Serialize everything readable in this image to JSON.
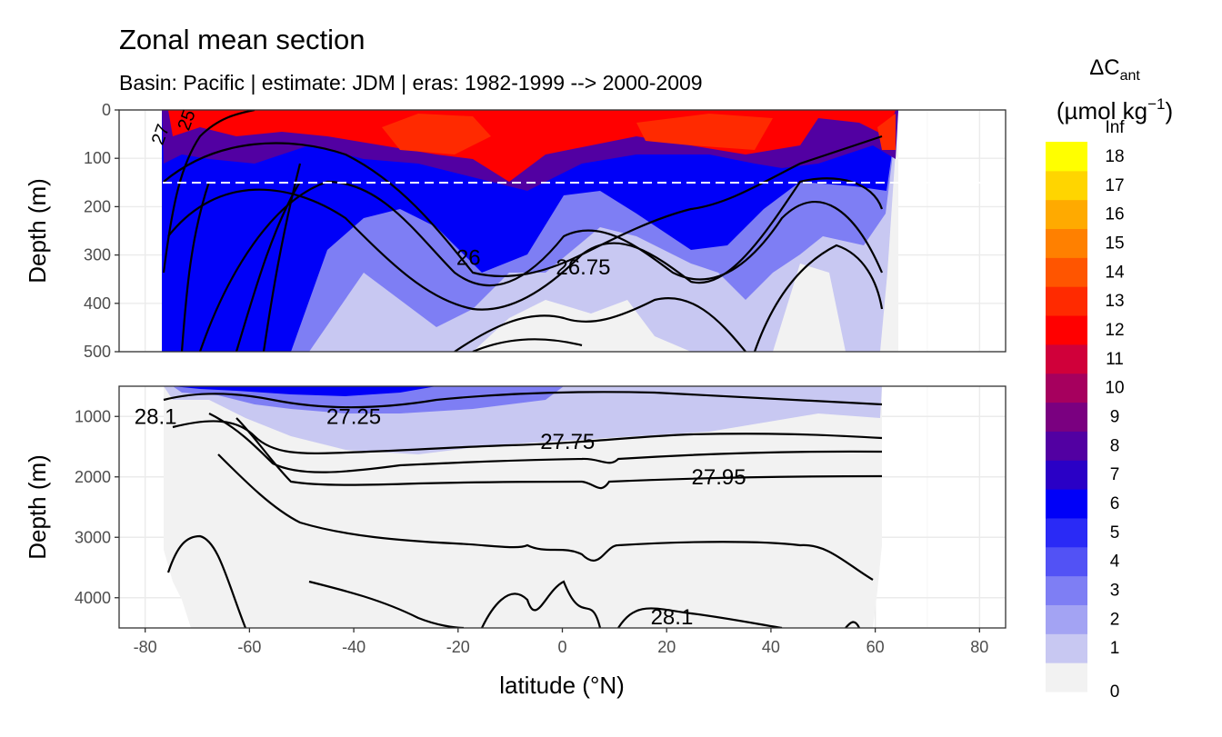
{
  "chart_data": {
    "type": "heatmap",
    "title": "Zonal mean section",
    "subtitle": "Basin: Pacific | estimate: JDM  | eras: 1982-1999 --> 2000-2009",
    "xlabel": "latitude (°N)",
    "ylabel_top": "Depth (m)",
    "ylabel_bottom": "Depth (m)",
    "x_ticks": [
      "-80",
      "-60",
      "-40",
      "-20",
      "0",
      "20",
      "40",
      "60",
      "80"
    ],
    "x_tick_values": [
      -80,
      -60,
      -40,
      -20,
      0,
      20,
      40,
      60,
      80
    ],
    "xlim": [
      -85,
      85
    ],
    "panel_top": {
      "ylim": [
        500,
        0
      ],
      "y_ticks": [
        "0",
        "100",
        "200",
        "300",
        "400",
        "500"
      ],
      "y_tick_values": [
        0,
        100,
        200,
        300,
        400,
        500
      ],
      "dashed_line_depth": 150
    },
    "panel_bottom": {
      "ylim": [
        4500,
        500
      ],
      "y_ticks": [
        "1000",
        "2000",
        "3000",
        "4000"
      ],
      "y_tick_values": [
        1000,
        2000,
        3000,
        4000
      ]
    },
    "legend": {
      "title_main": "ΔC",
      "title_sub": "ant",
      "title_units": "(µmol kg",
      "title_units_sup": "−1",
      "title_units_end": ")",
      "breaks": [
        "0",
        "1",
        "2",
        "3",
        "4",
        "5",
        "6",
        "7",
        "8",
        "9",
        "10",
        "11",
        "12",
        "13",
        "14",
        "15",
        "16",
        "17",
        "18",
        "Inf"
      ],
      "colors": [
        "#f2f2f2",
        "#c8c8f2",
        "#a3a3f3",
        "#7e7ef4",
        "#5252f5",
        "#2a2af6",
        "#0000f8",
        "#2a00c6",
        "#5200a2",
        "#7a0080",
        "#a6005e",
        "#d0003a",
        "#ff0000",
        "#ff2a00",
        "#ff5500",
        "#ff8000",
        "#ffaa00",
        "#ffd500",
        "#ffff00"
      ]
    },
    "contour_labels": [
      {
        "text": "26",
        "lat": -18,
        "depth": 305
      },
      {
        "text": "26.75",
        "lat": 4,
        "depth": 325
      },
      {
        "text": "28.1",
        "lat": -78,
        "depth": 1000
      },
      {
        "text": "27.25",
        "lat": -40,
        "depth": 1000
      },
      {
        "text": "27.75",
        "lat": 1,
        "depth": 1420
      },
      {
        "text": "27.95",
        "lat": 30,
        "depth": 2000
      },
      {
        "text": "28.1",
        "lat": 21,
        "depth": 4320
      },
      {
        "text": "27",
        "lat": -76,
        "depth": 40
      },
      {
        "text": "25",
        "lat": -71,
        "depth": 10
      }
    ]
  }
}
